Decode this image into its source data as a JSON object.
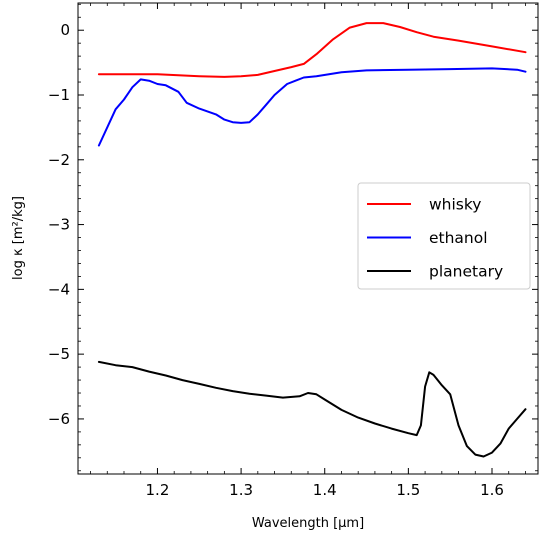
{
  "chart_data": {
    "type": "line",
    "title": "",
    "xlabel": "Wavelength [μm]",
    "ylabel": "log κ [m²/kg]",
    "xlim": [
      1.105,
      1.655
    ],
    "ylim": [
      -6.85,
      0.42
    ],
    "x_ticks": [
      1.2,
      1.3,
      1.4,
      1.5,
      1.6
    ],
    "x_tick_labels": [
      "1.2",
      "1.3",
      "1.4",
      "1.5",
      "1.6"
    ],
    "y_ticks": [
      0,
      -1,
      -2,
      -3,
      -4,
      -5,
      -6
    ],
    "y_tick_labels": [
      "0",
      "−1",
      "−2",
      "−3",
      "−4",
      "−5",
      "−6"
    ],
    "grid": false,
    "legend_position": "center-right",
    "series": [
      {
        "name": "whisky",
        "color": "#ff0000",
        "x": [
          1.13,
          1.15,
          1.2,
          1.25,
          1.28,
          1.3,
          1.32,
          1.34,
          1.36,
          1.375,
          1.39,
          1.41,
          1.43,
          1.45,
          1.47,
          1.49,
          1.51,
          1.53,
          1.56,
          1.6,
          1.64
        ],
        "y": [
          -0.68,
          -0.68,
          -0.68,
          -0.71,
          -0.72,
          -0.71,
          -0.69,
          -0.63,
          -0.57,
          -0.52,
          -0.37,
          -0.14,
          0.04,
          0.11,
          0.11,
          0.05,
          -0.03,
          -0.1,
          -0.16,
          -0.25,
          -0.34
        ]
      },
      {
        "name": "ethanol",
        "color": "#0000ff",
        "x": [
          1.13,
          1.15,
          1.16,
          1.17,
          1.18,
          1.19,
          1.2,
          1.21,
          1.225,
          1.235,
          1.25,
          1.27,
          1.28,
          1.29,
          1.3,
          1.31,
          1.32,
          1.33,
          1.34,
          1.355,
          1.365,
          1.375,
          1.39,
          1.42,
          1.45,
          1.5,
          1.55,
          1.6,
          1.63,
          1.64
        ],
        "y": [
          -1.78,
          -1.22,
          -1.07,
          -0.88,
          -0.76,
          -0.78,
          -0.83,
          -0.85,
          -0.95,
          -1.12,
          -1.21,
          -1.3,
          -1.38,
          -1.42,
          -1.43,
          -1.42,
          -1.3,
          -1.15,
          -1.0,
          -0.83,
          -0.78,
          -0.73,
          -0.71,
          -0.65,
          -0.62,
          -0.61,
          -0.6,
          -0.59,
          -0.61,
          -0.64
        ]
      },
      {
        "name": "planetary",
        "color": "#000000",
        "x": [
          1.13,
          1.15,
          1.17,
          1.19,
          1.21,
          1.23,
          1.25,
          1.27,
          1.29,
          1.31,
          1.33,
          1.35,
          1.37,
          1.38,
          1.39,
          1.4,
          1.42,
          1.44,
          1.46,
          1.48,
          1.5,
          1.51,
          1.515,
          1.52,
          1.525,
          1.53,
          1.54,
          1.55,
          1.56,
          1.57,
          1.58,
          1.59,
          1.6,
          1.61,
          1.62,
          1.63,
          1.64
        ],
        "y": [
          -5.12,
          -5.17,
          -5.2,
          -5.27,
          -5.33,
          -5.4,
          -5.46,
          -5.52,
          -5.57,
          -5.61,
          -5.64,
          -5.67,
          -5.65,
          -5.6,
          -5.62,
          -5.7,
          -5.86,
          -5.98,
          -6.07,
          -6.15,
          -6.22,
          -6.25,
          -6.1,
          -5.5,
          -5.28,
          -5.32,
          -5.48,
          -5.62,
          -6.1,
          -6.42,
          -6.55,
          -6.58,
          -6.52,
          -6.38,
          -6.15,
          -6.0,
          -5.85
        ]
      }
    ]
  }
}
